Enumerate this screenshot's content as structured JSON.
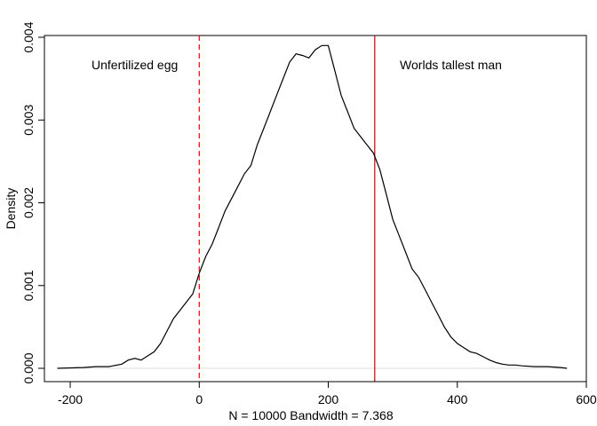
{
  "chart_data": {
    "type": "line",
    "title": "",
    "xlabel": "N = 10000   Bandwidth = 7.368",
    "ylabel": "Density",
    "xlim": [
      -240,
      600
    ],
    "ylim": [
      0,
      0.004
    ],
    "x_ticks": [
      -200,
      0,
      200,
      400,
      600
    ],
    "x_tick_labels": [
      "-200",
      "0",
      "200",
      "400",
      "600"
    ],
    "y_ticks": [
      0,
      0.001,
      0.002,
      0.003,
      0.004
    ],
    "y_tick_labels": [
      "0.000",
      "0.001",
      "0.002",
      "0.003",
      "0.004"
    ],
    "grid": false,
    "series": [
      {
        "color": "#000000",
        "x": [
          -220,
          -180,
          -160,
          -140,
          -120,
          -110,
          -100,
          -90,
          -80,
          -70,
          -60,
          -50,
          -40,
          -30,
          -20,
          -10,
          0,
          10,
          20,
          30,
          40,
          50,
          60,
          70,
          80,
          90,
          100,
          110,
          120,
          130,
          140,
          150,
          160,
          170,
          180,
          190,
          200,
          210,
          220,
          230,
          240,
          250,
          260,
          270,
          280,
          290,
          300,
          310,
          320,
          330,
          340,
          350,
          360,
          370,
          380,
          390,
          400,
          410,
          420,
          430,
          440,
          450,
          460,
          470,
          480,
          490,
          500,
          520,
          540,
          560,
          570
        ],
        "y": [
          0.0,
          1e-05,
          2e-05,
          2e-05,
          5e-05,
          0.0001,
          0.00012,
          0.0001,
          0.00015,
          0.0002,
          0.0003,
          0.00045,
          0.0006,
          0.0007,
          0.0008,
          0.0009,
          0.00115,
          0.00135,
          0.0015,
          0.0017,
          0.0019,
          0.00205,
          0.0022,
          0.00235,
          0.00245,
          0.0027,
          0.0029,
          0.0031,
          0.0033,
          0.0035,
          0.0037,
          0.0038,
          0.00378,
          0.00375,
          0.00385,
          0.0039,
          0.0039,
          0.0036,
          0.0033,
          0.0031,
          0.0029,
          0.0028,
          0.0027,
          0.0026,
          0.0024,
          0.0021,
          0.0018,
          0.0016,
          0.0014,
          0.0012,
          0.0011,
          0.00095,
          0.0008,
          0.00065,
          0.0005,
          0.00038,
          0.0003,
          0.00025,
          0.0002,
          0.00018,
          0.00014,
          0.0001,
          7e-05,
          5e-05,
          4e-05,
          4e-05,
          3e-05,
          2e-05,
          2e-05,
          1e-05,
          0.0
        ]
      }
    ],
    "vlines": [
      {
        "x": 0,
        "color": "#ff0000",
        "style": "dashed"
      },
      {
        "x": 272,
        "color": "#cc0000",
        "style": "solid"
      }
    ],
    "hline": {
      "y": 0,
      "color": "#dddddd"
    },
    "annotations": [
      {
        "text": "Unfertilized egg",
        "x": -100,
        "y": 0.00367
      },
      {
        "text": "Worlds tallest man",
        "x": 390,
        "y": 0.00367
      }
    ]
  }
}
